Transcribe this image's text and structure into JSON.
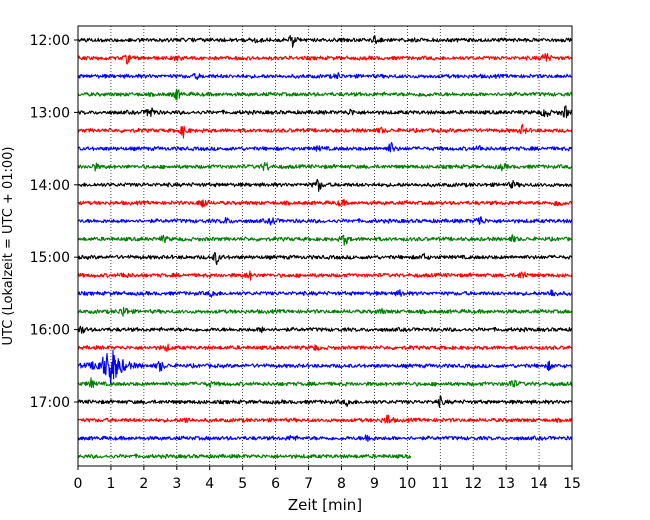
{
  "chart_data": {
    "type": "line",
    "xlabel": "Zeit  [min]",
    "ylabel": "UTC (Lokalzeit = UTC + 01:00)",
    "xlim": [
      0,
      15
    ],
    "x_ticks": [
      "0",
      "1",
      "2",
      "3",
      "4",
      "5",
      "6",
      "7",
      "8",
      "9",
      "10",
      "11",
      "12",
      "13",
      "14",
      "15"
    ],
    "y_tick_labels": [
      "12:00",
      "13:00",
      "14:00",
      "15:00",
      "16:00",
      "17:00"
    ],
    "grid": "vertical-dotted",
    "trace_interval_min": 15,
    "last_trace_end_min": 10.1,
    "colors": [
      "#000000",
      "#ff0000",
      "#0000ff",
      "#008000"
    ],
    "traces": [
      {
        "start": "12:00",
        "events": [
          [
            5.4,
            0.5
          ],
          [
            6.5,
            0.9
          ],
          [
            9.0,
            0.4
          ]
        ]
      },
      {
        "start": "12:15",
        "events": [
          [
            1.5,
            0.6
          ],
          [
            3.0,
            0.3
          ],
          [
            14.2,
            0.9
          ]
        ]
      },
      {
        "start": "12:30",
        "events": [
          [
            3.6,
            0.3
          ],
          [
            7.9,
            0.3
          ]
        ]
      },
      {
        "start": "12:45",
        "events": [
          [
            3.0,
            0.8
          ],
          [
            10.5,
            0.3
          ]
        ]
      },
      {
        "start": "13:00",
        "events": [
          [
            2.2,
            1.0
          ],
          [
            8.3,
            0.4
          ],
          [
            14.2,
            0.9
          ],
          [
            14.8,
            0.9
          ]
        ]
      },
      {
        "start": "13:15",
        "events": [
          [
            3.2,
            0.8
          ],
          [
            9.2,
            0.3
          ],
          [
            13.5,
            0.6
          ]
        ]
      },
      {
        "start": "13:30",
        "events": [
          [
            7.3,
            0.3
          ],
          [
            9.5,
            0.8
          ],
          [
            12.2,
            0.3
          ]
        ]
      },
      {
        "start": "13:45",
        "events": [
          [
            0.5,
            0.5
          ],
          [
            5.7,
            0.7
          ],
          [
            12.9,
            0.4
          ]
        ]
      },
      {
        "start": "14:00",
        "events": [
          [
            7.3,
            0.9
          ],
          [
            13.2,
            0.4
          ]
        ]
      },
      {
        "start": "14:15",
        "events": [
          [
            3.8,
            0.8
          ],
          [
            8.0,
            0.5
          ],
          [
            14.6,
            0.7
          ]
        ]
      },
      {
        "start": "14:30",
        "events": [
          [
            4.5,
            0.4
          ],
          [
            5.9,
            0.5
          ],
          [
            12.2,
            0.8
          ]
        ]
      },
      {
        "start": "14:45",
        "events": [
          [
            2.6,
            0.4
          ],
          [
            8.1,
            0.8
          ],
          [
            13.2,
            0.4
          ]
        ]
      },
      {
        "start": "15:00",
        "events": [
          [
            4.2,
            0.9
          ],
          [
            10.5,
            0.4
          ]
        ]
      },
      {
        "start": "15:15",
        "events": [
          [
            1.4,
            0.4
          ],
          [
            5.2,
            0.6
          ],
          [
            13.5,
            0.7
          ]
        ]
      },
      {
        "start": "15:30",
        "events": [
          [
            4.1,
            0.5
          ],
          [
            9.8,
            0.4
          ],
          [
            14.4,
            0.6
          ]
        ]
      },
      {
        "start": "15:45",
        "events": [
          [
            1.4,
            0.9
          ],
          [
            9.2,
            0.3
          ]
        ]
      },
      {
        "start": "16:00",
        "events": [
          [
            0.1,
            0.6
          ],
          [
            5.6,
            0.3
          ]
        ]
      },
      {
        "start": "16:15",
        "events": [
          [
            2.7,
            0.4
          ],
          [
            7.2,
            0.3
          ]
        ]
      },
      {
        "start": "16:30",
        "events": [
          [
            1.0,
            2.5
          ],
          [
            2.5,
            0.8
          ],
          [
            14.3,
            0.5
          ]
        ]
      },
      {
        "start": "16:45",
        "events": [
          [
            0.4,
            0.6
          ],
          [
            4.0,
            0.3
          ],
          [
            13.2,
            0.7
          ]
        ]
      },
      {
        "start": "17:00",
        "events": [
          [
            8.2,
            0.5
          ],
          [
            11.0,
            0.6
          ]
        ]
      },
      {
        "start": "17:15",
        "events": [
          [
            3.3,
            0.4
          ],
          [
            9.4,
            0.8
          ]
        ]
      },
      {
        "start": "17:30",
        "events": [
          [
            6.5,
            0.4
          ],
          [
            8.8,
            0.6
          ]
        ]
      },
      {
        "start": "17:45",
        "events": []
      }
    ]
  }
}
